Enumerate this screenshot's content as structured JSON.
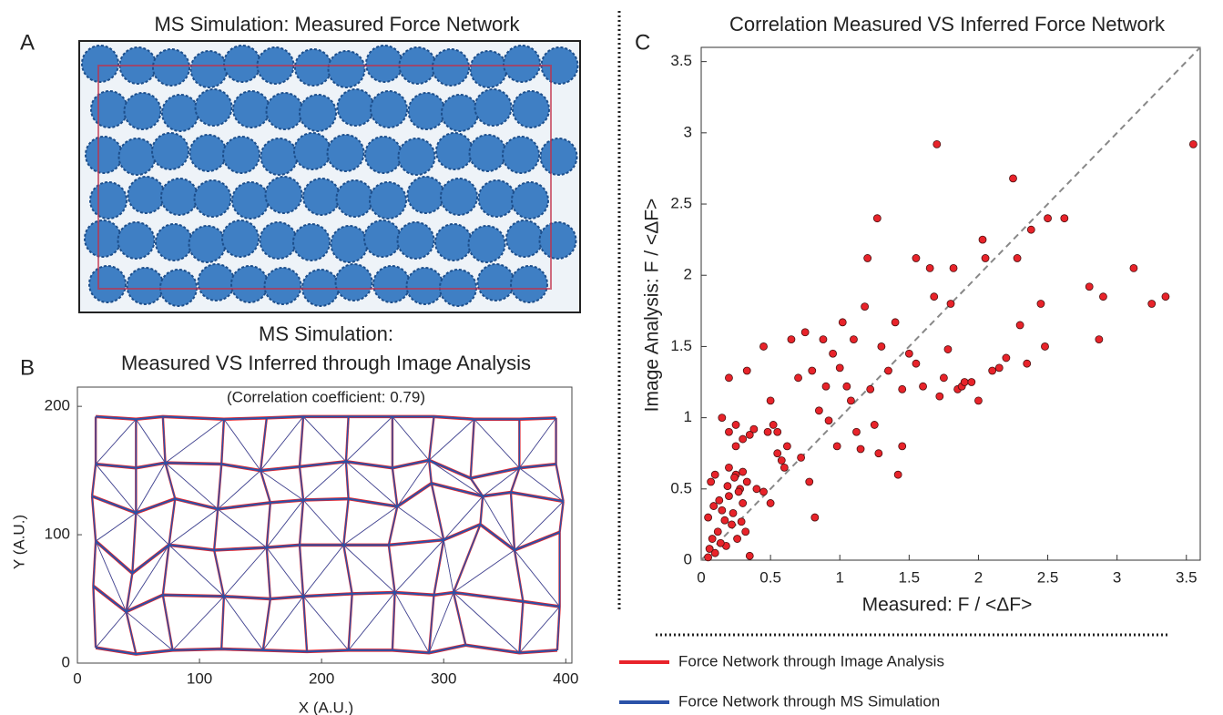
{
  "chart_data": [
    {
      "type": "image",
      "panel": "A",
      "title": "MS Simulation: Measured Force Network"
    },
    {
      "type": "network",
      "panel": "B",
      "title": [
        "MS Simulation:",
        "Measured VS Inferred through Image Analysis"
      ],
      "annotation": "(Correlation coefficient: 0.79)",
      "x_label": "X (A.U.)",
      "y_label": "Y (A.U.)",
      "xlim": [
        0,
        405
      ],
      "ylim": [
        0,
        215
      ],
      "xticks": [
        0,
        100,
        200,
        300,
        400
      ],
      "yticks": [
        0,
        100,
        200
      ],
      "series": [
        {
          "name": "Force Network through Image Analysis",
          "color": "#e8232a"
        },
        {
          "name": "Force Network through MS Simulation",
          "color": "#2a52a8"
        }
      ],
      "nodes": [
        {
          "x": [
            15,
            48,
            78,
            118,
            152,
            188,
            222,
            258,
            288,
            318,
            362,
            393
          ],
          "y": [
            12,
            7,
            10,
            11,
            10,
            9,
            10,
            10,
            8,
            14,
            8,
            10
          ]
        },
        {
          "x": [
            13,
            40,
            70,
            120,
            158,
            185,
            225,
            260,
            292,
            308,
            365,
            395
          ],
          "y": [
            60,
            40,
            53,
            52,
            50,
            52,
            54,
            55,
            53,
            55,
            48,
            44
          ]
        },
        {
          "x": [
            15,
            45,
            75,
            112,
            155,
            182,
            218,
            255,
            300,
            330,
            358,
            395
          ],
          "y": [
            95,
            70,
            92,
            88,
            90,
            92,
            92,
            92,
            96,
            108,
            88,
            102
          ]
        },
        {
          "x": [
            12,
            48,
            80,
            115,
            158,
            185,
            222,
            262,
            290,
            332,
            355,
            398
          ],
          "y": [
            130,
            117,
            128,
            120,
            125,
            127,
            128,
            122,
            140,
            130,
            133,
            126
          ]
        },
        {
          "x": [
            15,
            48,
            72,
            118,
            150,
            182,
            220,
            258,
            288,
            322,
            362,
            392
          ],
          "y": [
            155,
            152,
            156,
            155,
            150,
            153,
            157,
            152,
            158,
            144,
            152,
            155
          ]
        },
        {
          "x": [
            15,
            48,
            70,
            120,
            155,
            185,
            222,
            258,
            292,
            325,
            362,
            392
          ],
          "y": [
            192,
            190,
            192,
            190,
            191,
            192,
            192,
            192,
            192,
            190,
            190,
            191
          ]
        }
      ]
    },
    {
      "type": "scatter",
      "panel": "C",
      "title": "Correlation Measured VS Inferred Force Network",
      "x_label": "Measured: F / <ΔF>",
      "y_label": "Image Analysis: F / <ΔF>",
      "xlim": [
        0,
        3.6
      ],
      "ylim": [
        0,
        3.6
      ],
      "xticks": [
        0,
        0.5,
        1,
        1.5,
        2,
        2.5,
        3,
        3.5
      ],
      "yticks": [
        0,
        0.5,
        1,
        1.5,
        2,
        2.5,
        3,
        3.5
      ],
      "diagonal": true,
      "color": "#e8232a",
      "x": [
        0.05,
        0.08,
        0.1,
        0.12,
        0.15,
        0.18,
        0.2,
        0.22,
        0.25,
        0.28,
        0.3,
        0.32,
        0.35,
        0.05,
        0.07,
        0.1,
        0.13,
        0.17,
        0.2,
        0.24,
        0.27,
        0.3,
        0.33,
        0.06,
        0.09,
        0.14,
        0.19,
        0.23,
        0.26,
        0.29,
        0.2,
        0.15,
        0.2,
        0.25,
        0.3,
        0.35,
        0.38,
        0.33,
        0.25,
        0.45,
        0.5,
        0.52,
        0.55,
        0.58,
        0.6,
        0.62,
        0.45,
        0.5,
        0.55,
        0.65,
        0.7,
        0.72,
        0.75,
        0.78,
        0.8,
        0.82,
        0.85,
        0.88,
        0.9,
        0.92,
        0.95,
        1.0,
        1.02,
        1.05,
        1.08,
        1.1,
        1.12,
        1.15,
        1.18,
        1.2,
        1.22,
        1.25,
        1.27,
        1.3,
        1.35,
        1.4,
        1.42,
        1.45,
        1.5,
        1.55,
        1.6,
        1.65,
        1.68,
        1.7,
        1.72,
        1.75,
        1.78,
        1.8,
        1.82,
        1.85,
        1.88,
        1.9,
        1.95,
        2.0,
        2.03,
        2.05,
        2.1,
        2.15,
        2.2,
        2.25,
        2.28,
        2.3,
        2.35,
        2.38,
        2.45,
        2.48,
        2.5,
        2.62,
        2.8,
        2.87,
        2.9,
        3.12,
        3.25,
        3.35,
        3.55,
        1.55,
        1.45,
        1.28,
        0.98,
        0.4,
        0.48
      ],
      "y": [
        0.3,
        0.15,
        0.05,
        0.2,
        0.35,
        0.1,
        0.45,
        0.25,
        0.6,
        0.5,
        0.4,
        0.2,
        0.03,
        0.02,
        0.55,
        0.6,
        0.42,
        0.28,
        0.65,
        0.58,
        0.48,
        0.62,
        0.55,
        0.08,
        0.38,
        0.12,
        0.52,
        0.33,
        0.15,
        0.27,
        1.28,
        1.0,
        0.9,
        0.8,
        0.85,
        0.88,
        0.92,
        1.33,
        0.95,
        1.5,
        1.12,
        0.95,
        0.75,
        0.7,
        0.65,
        0.8,
        0.48,
        0.4,
        0.9,
        1.55,
        1.28,
        0.72,
        1.6,
        0.55,
        1.33,
        0.3,
        1.05,
        1.55,
        1.22,
        0.98,
        1.45,
        1.35,
        1.67,
        1.22,
        1.12,
        1.55,
        0.9,
        0.78,
        1.78,
        2.12,
        1.2,
        0.95,
        2.4,
        1.5,
        1.33,
        1.67,
        0.6,
        1.2,
        1.45,
        2.12,
        1.22,
        2.05,
        1.85,
        2.92,
        1.15,
        1.28,
        1.48,
        1.8,
        2.05,
        1.2,
        1.22,
        1.25,
        1.25,
        1.12,
        2.25,
        2.12,
        1.33,
        1.35,
        1.42,
        2.68,
        2.12,
        1.65,
        1.38,
        2.32,
        1.8,
        1.5,
        2.4,
        2.4,
        1.92,
        1.55,
        1.85,
        2.05,
        1.8,
        1.85,
        2.92,
        1.38,
        0.8,
        0.75,
        0.8,
        0.5,
        0.9
      ]
    }
  ]
}
